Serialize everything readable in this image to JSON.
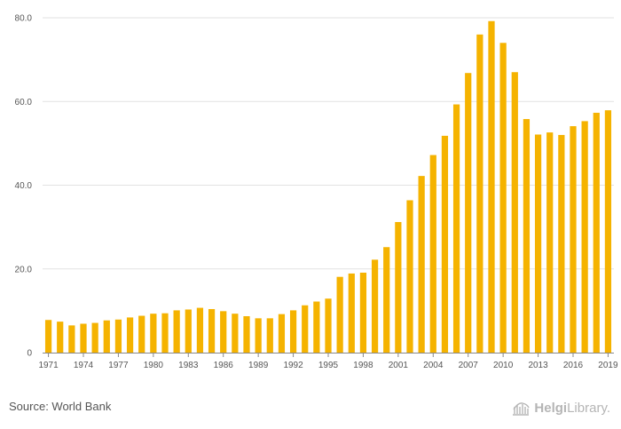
{
  "chart_data": {
    "type": "bar",
    "title": "",
    "xlabel": "",
    "ylabel": "",
    "ylim": [
      0,
      80
    ],
    "yticks": [
      0,
      20,
      40,
      60,
      80
    ],
    "ytick_labels": [
      "0",
      "20.0",
      "40.0",
      "60.0",
      "80.0"
    ],
    "grid": true,
    "bar_color": "#f5b300",
    "categories": [
      "1971",
      "1972",
      "1973",
      "1974",
      "1975",
      "1976",
      "1977",
      "1978",
      "1979",
      "1980",
      "1981",
      "1982",
      "1983",
      "1984",
      "1985",
      "1986",
      "1987",
      "1988",
      "1989",
      "1990",
      "1991",
      "1992",
      "1993",
      "1994",
      "1995",
      "1996",
      "1997",
      "1998",
      "1999",
      "2000",
      "2001",
      "2002",
      "2003",
      "2004",
      "2005",
      "2006",
      "2007",
      "2008",
      "2009",
      "2010",
      "2011",
      "2012",
      "2013",
      "2014",
      "2015",
      "2016",
      "2017",
      "2018",
      "2019"
    ],
    "x_tick_labels": [
      "1971",
      "1974",
      "1977",
      "1980",
      "1983",
      "1986",
      "1989",
      "1992",
      "1995",
      "1998",
      "2001",
      "2004",
      "2007",
      "2010",
      "2013",
      "2016",
      "2019"
    ],
    "values": [
      7.8,
      7.4,
      6.5,
      6.9,
      7.1,
      7.7,
      7.9,
      8.4,
      8.8,
      9.3,
      9.4,
      10.1,
      10.3,
      10.7,
      10.4,
      9.9,
      9.3,
      8.7,
      8.2,
      8.2,
      9.2,
      10.1,
      11.3,
      12.2,
      12.9,
      18.1,
      18.9,
      19.1,
      22.2,
      25.2,
      31.2,
      36.4,
      42.2,
      47.2,
      51.8,
      59.3,
      66.8,
      76.0,
      79.2,
      74.0,
      67.0,
      55.8,
      52.1,
      52.6,
      52.0,
      54.1,
      55.3,
      57.3,
      57.9
    ]
  },
  "footer": {
    "source": "Source: World Bank",
    "brand_name": "Helgi",
    "brand_suffix": "Library."
  }
}
